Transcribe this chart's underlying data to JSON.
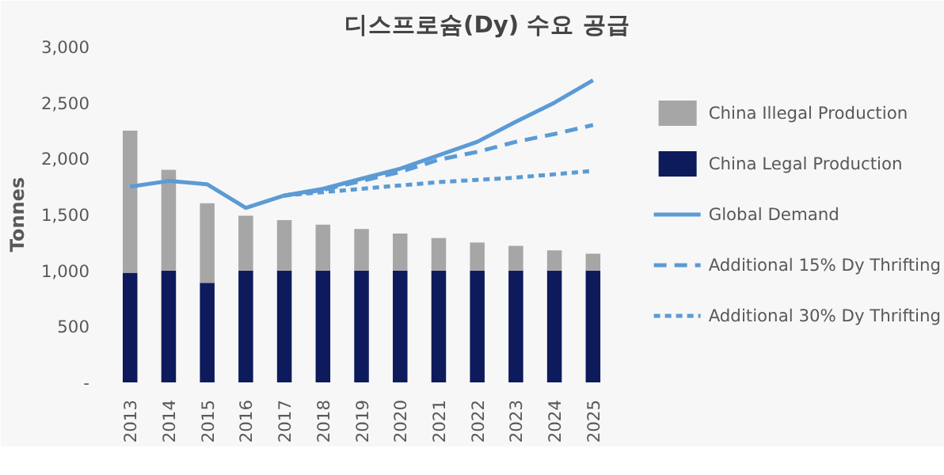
{
  "chart_data": {
    "type": "bar",
    "stacked": true,
    "title": "디스프로슘(Dy) 수요 공급",
    "ylabel": "Tonnes",
    "categories": [
      "2013",
      "2014",
      "2015",
      "2016",
      "2017",
      "2018",
      "2019",
      "2020",
      "2021",
      "2022",
      "2023",
      "2024",
      "2025"
    ],
    "ylim": [
      0,
      3000
    ],
    "yticks": [
      {
        "value": 0,
        "label": "-"
      },
      {
        "value": 500,
        "label": "500"
      },
      {
        "value": 1000,
        "label": "1,000"
      },
      {
        "value": 1500,
        "label": "1,500"
      },
      {
        "value": 2000,
        "label": "2,000"
      },
      {
        "value": 2500,
        "label": "2,500"
      },
      {
        "value": 3000,
        "label": "3,000"
      }
    ],
    "grid": false,
    "legend": "right",
    "series": [
      {
        "name": "China Legal Production",
        "color": "#0d1a5c",
        "values": [
          980,
          1000,
          890,
          1000,
          1000,
          1000,
          1000,
          1000,
          1000,
          1000,
          1000,
          1000,
          1000
        ]
      },
      {
        "name": "China Illegal Production",
        "color": "#a6a6a6",
        "values": [
          1270,
          900,
          710,
          490,
          450,
          410,
          370,
          330,
          290,
          250,
          220,
          180,
          150
        ]
      },
      {
        "name": "Global Demand",
        "type": "line",
        "line_style": "solid",
        "color": "#5b9bd5",
        "values": [
          1750,
          1800,
          1770,
          1560,
          1670,
          1730,
          1820,
          1910,
          2030,
          2150,
          2330,
          2500,
          2700
        ]
      },
      {
        "name": "Additional 15% Dy Thrifting",
        "type": "line",
        "line_style": "dashed",
        "color": "#5b9bd5",
        "values": [
          null,
          null,
          null,
          null,
          1670,
          1720,
          1800,
          1880,
          1990,
          2060,
          2150,
          2220,
          2300
        ]
      },
      {
        "name": "Additional 30% Dy Thrifting",
        "type": "line",
        "line_style": "dotted",
        "color": "#5b9bd5",
        "values": [
          null,
          null,
          null,
          null,
          1670,
          1700,
          1730,
          1760,
          1790,
          1810,
          1830,
          1860,
          1890
        ]
      }
    ]
  }
}
